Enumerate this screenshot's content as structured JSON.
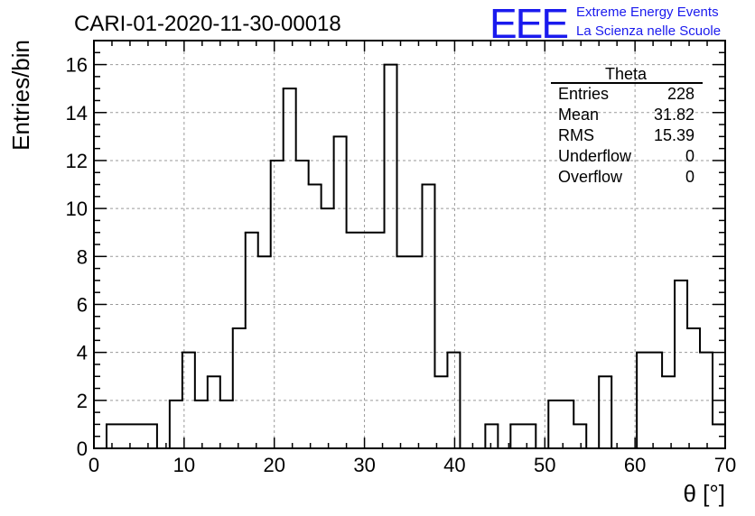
{
  "chart_data": {
    "type": "histogram",
    "title": "CARI-01-2020-11-30-00018",
    "xlabel": "θ [°]",
    "ylabel": "Entries/bin",
    "xlim": [
      0,
      70
    ],
    "ylim": [
      0,
      17
    ],
    "xticks": [
      0,
      10,
      20,
      30,
      40,
      50,
      60,
      70
    ],
    "yticks": [
      0,
      2,
      4,
      6,
      8,
      10,
      12,
      14,
      16
    ],
    "grid": true,
    "bin_width": 1.4,
    "bins": [
      {
        "x0": 1.4,
        "x1": 7.0,
        "value": 1
      },
      {
        "x0": 7.0,
        "x1": 8.4,
        "value": 0
      },
      {
        "x0": 8.4,
        "x1": 9.8,
        "value": 2
      },
      {
        "x0": 9.8,
        "x1": 11.2,
        "value": 4
      },
      {
        "x0": 11.2,
        "x1": 12.6,
        "value": 2
      },
      {
        "x0": 12.6,
        "x1": 14.0,
        "value": 3
      },
      {
        "x0": 14.0,
        "x1": 15.4,
        "value": 2
      },
      {
        "x0": 15.4,
        "x1": 16.8,
        "value": 5
      },
      {
        "x0": 16.8,
        "x1": 18.2,
        "value": 9
      },
      {
        "x0": 18.2,
        "x1": 19.6,
        "value": 8
      },
      {
        "x0": 19.6,
        "x1": 21.0,
        "value": 12
      },
      {
        "x0": 21.0,
        "x1": 22.4,
        "value": 15
      },
      {
        "x0": 22.4,
        "x1": 23.8,
        "value": 12
      },
      {
        "x0": 23.8,
        "x1": 25.2,
        "value": 11
      },
      {
        "x0": 25.2,
        "x1": 26.6,
        "value": 10
      },
      {
        "x0": 26.6,
        "x1": 28.0,
        "value": 13
      },
      {
        "x0": 28.0,
        "x1": 32.2,
        "value": 9
      },
      {
        "x0": 32.2,
        "x1": 33.6,
        "value": 16
      },
      {
        "x0": 33.6,
        "x1": 36.4,
        "value": 8
      },
      {
        "x0": 36.4,
        "x1": 37.8,
        "value": 11
      },
      {
        "x0": 37.8,
        "x1": 39.2,
        "value": 3
      },
      {
        "x0": 39.2,
        "x1": 40.6,
        "value": 4
      },
      {
        "x0": 40.6,
        "x1": 43.4,
        "value": 0
      },
      {
        "x0": 43.4,
        "x1": 44.8,
        "value": 1
      },
      {
        "x0": 44.8,
        "x1": 46.2,
        "value": 0
      },
      {
        "x0": 46.2,
        "x1": 49.0,
        "value": 1
      },
      {
        "x0": 49.0,
        "x1": 50.4,
        "value": 0
      },
      {
        "x0": 50.4,
        "x1": 53.2,
        "value": 2
      },
      {
        "x0": 53.2,
        "x1": 54.6,
        "value": 1
      },
      {
        "x0": 54.6,
        "x1": 56.0,
        "value": 0
      },
      {
        "x0": 56.0,
        "x1": 57.4,
        "value": 3
      },
      {
        "x0": 57.4,
        "x1": 60.2,
        "value": 0
      },
      {
        "x0": 60.2,
        "x1": 63.0,
        "value": 4
      },
      {
        "x0": 63.0,
        "x1": 64.4,
        "value": 3
      },
      {
        "x0": 64.4,
        "x1": 65.8,
        "value": 7
      },
      {
        "x0": 65.8,
        "x1": 67.2,
        "value": 5
      },
      {
        "x0": 67.2,
        "x1": 68.6,
        "value": 4
      },
      {
        "x0": 68.6,
        "x1": 70.0,
        "value": 1
      }
    ],
    "stats": {
      "title": "Theta",
      "rows": [
        {
          "label": "Entries",
          "value": "228"
        },
        {
          "label": "Mean",
          "value": "31.82"
        },
        {
          "label": "RMS",
          "value": "15.39"
        },
        {
          "label": "Underflow",
          "value": "0"
        },
        {
          "label": "Overflow",
          "value": "0"
        }
      ]
    },
    "logo": {
      "text": "EEE",
      "line1": "Extreme Energy Events",
      "line2": "La Scienza nelle Scuole",
      "color": "#1a1aee"
    }
  }
}
